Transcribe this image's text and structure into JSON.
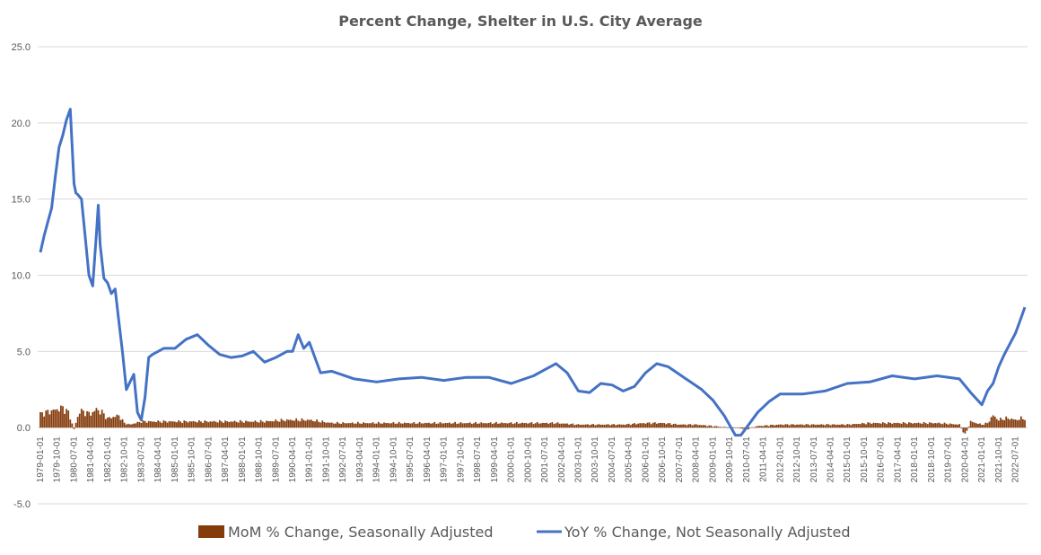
{
  "chart_data": {
    "type": "bar+line",
    "title": "Percent Change,  Shelter in U.S. City Average",
    "xlabel": "",
    "ylabel": "",
    "ylim": [
      -5,
      25
    ],
    "yticks": [
      "-5.0",
      "0.0",
      "5.0",
      "10.0",
      "15.0",
      "20.0",
      "25.0"
    ],
    "grid": true,
    "legend_position": "bottom",
    "colors": {
      "mom": "#843c0c",
      "yoy": "#4472c4"
    },
    "x_tick_labels": [
      "1979-01-01",
      "1979-10-01",
      "1980-07-01",
      "1981-04-01",
      "1982-01-01",
      "1982-10-01",
      "1983-07-01",
      "1984-04-01",
      "1985-01-01",
      "1985-10-01",
      "1986-07-01",
      "1987-04-01",
      "1988-01-01",
      "1988-10-01",
      "1989-07-01",
      "1990-04-01",
      "1991-01-01",
      "1991-10-01",
      "1992-07-01",
      "1993-04-01",
      "1994-01-01",
      "1994-10-01",
      "1995-07-01",
      "1996-04-01",
      "1997-01-01",
      "1997-10-01",
      "1998-07-01",
      "1999-04-01",
      "2000-01-01",
      "2000-10-01",
      "2001-07-01",
      "2002-04-01",
      "2003-01-01",
      "2003-10-01",
      "2004-07-01",
      "2005-04-01",
      "2006-01-01",
      "2006-10-01",
      "2007-07-01",
      "2008-04-01",
      "2009-01-01",
      "2009-10-01",
      "2010-07-01",
      "2011-04-01",
      "2012-01-01",
      "2012-10-01",
      "2013-07-01",
      "2014-04-01",
      "2015-01-01",
      "2015-10-01",
      "2016-07-01",
      "2017-04-01",
      "2018-01-01",
      "2018-10-01",
      "2019-07-01",
      "2020-04-01",
      "2021-01-01",
      "2021-10-01",
      "2022-07-01"
    ],
    "series": [
      {
        "name": "MoM % Change, Seasonally Adjusted",
        "type": "bar",
        "x": [
          "1979-01",
          "1979-04",
          "1979-07",
          "1979-10",
          "1980-01",
          "1980-04",
          "1980-07",
          "1980-10",
          "1981-01",
          "1981-04",
          "1981-07",
          "1981-10",
          "1982-01",
          "1982-04",
          "1982-07",
          "1982-10",
          "1983-01",
          "1983-07",
          "1984-01",
          "1985-01",
          "1986-01",
          "1987-01",
          "1988-01",
          "1989-01",
          "1990-01",
          "1990-07",
          "1991-01",
          "1992-01",
          "1993-01",
          "1994-01",
          "1995-01",
          "1996-01",
          "1997-01",
          "1998-01",
          "1999-01",
          "2000-01",
          "2001-01",
          "2002-01",
          "2003-01",
          "2004-01",
          "2005-01",
          "2006-01",
          "2006-10",
          "2007-07",
          "2008-04",
          "2009-01",
          "2009-10",
          "2010-01",
          "2010-07",
          "2011-01",
          "2012-01",
          "2013-01",
          "2014-01",
          "2015-01",
          "2016-01",
          "2017-01",
          "2018-01",
          "2019-01",
          "2020-01",
          "2020-04",
          "2020-07",
          "2021-01",
          "2021-04",
          "2021-07",
          "2021-10",
          "2022-01",
          "2022-04",
          "2022-07",
          "2022-10"
        ],
        "values": [
          0.9,
          1.0,
          1.1,
          1.2,
          1.3,
          1.0,
          -0.1,
          1.1,
          1.0,
          0.9,
          1.2,
          1.0,
          0.6,
          0.7,
          0.8,
          0.3,
          0.2,
          0.4,
          0.4,
          0.4,
          0.4,
          0.4,
          0.4,
          0.4,
          0.5,
          0.5,
          0.5,
          0.3,
          0.3,
          0.3,
          0.3,
          0.3,
          0.3,
          0.3,
          0.3,
          0.3,
          0.3,
          0.3,
          0.2,
          0.2,
          0.2,
          0.3,
          0.3,
          0.2,
          0.2,
          0.1,
          0.0,
          0.0,
          -0.1,
          0.1,
          0.2,
          0.2,
          0.2,
          0.2,
          0.3,
          0.3,
          0.3,
          0.3,
          0.2,
          -0.5,
          0.4,
          0.2,
          0.3,
          0.8,
          0.5,
          0.6,
          0.6,
          0.5,
          0.6
        ]
      },
      {
        "name": "YoY % Change, Not Seasonally Adjusted",
        "type": "line",
        "x": [
          "1979-01",
          "1979-03",
          "1979-05",
          "1979-07",
          "1979-09",
          "1979-11",
          "1980-01",
          "1980-03",
          "1980-05",
          "1980-07",
          "1980-08",
          "1980-09",
          "1980-11",
          "1981-01",
          "1981-03",
          "1981-05",
          "1981-07",
          "1981-08",
          "1981-09",
          "1981-11",
          "1982-01",
          "1982-03",
          "1982-05",
          "1982-07",
          "1982-09",
          "1982-11",
          "1983-01",
          "1983-03",
          "1983-05",
          "1983-07",
          "1983-09",
          "1983-11",
          "1984-01",
          "1984-07",
          "1985-01",
          "1985-07",
          "1986-01",
          "1986-07",
          "1987-01",
          "1987-07",
          "1988-01",
          "1988-07",
          "1989-01",
          "1989-07",
          "1990-01",
          "1990-04",
          "1990-07",
          "1990-10",
          "1991-01",
          "1991-07",
          "1992-01",
          "1993-01",
          "1994-01",
          "1995-01",
          "1996-01",
          "1997-01",
          "1998-01",
          "1999-01",
          "2000-01",
          "2001-01",
          "2001-07",
          "2002-01",
          "2002-07",
          "2003-01",
          "2003-07",
          "2004-01",
          "2004-07",
          "2005-01",
          "2005-07",
          "2006-01",
          "2006-07",
          "2007-01",
          "2007-07",
          "2008-01",
          "2008-07",
          "2009-01",
          "2009-07",
          "2010-01",
          "2010-04",
          "2010-07",
          "2011-01",
          "2011-07",
          "2012-01",
          "2013-01",
          "2014-01",
          "2015-01",
          "2016-01",
          "2017-01",
          "2018-01",
          "2019-01",
          "2020-01",
          "2020-07",
          "2021-01",
          "2021-04",
          "2021-07",
          "2021-10",
          "2022-01",
          "2022-04",
          "2022-07",
          "2022-10",
          "2022-12"
        ],
        "values": [
          11.5,
          12.6,
          13.5,
          14.4,
          16.5,
          18.4,
          19.2,
          20.2,
          20.9,
          16.0,
          15.4,
          15.3,
          15.0,
          12.5,
          10.0,
          9.3,
          12.7,
          14.6,
          12.0,
          9.8,
          9.5,
          8.8,
          9.1,
          7.0,
          4.9,
          2.5,
          3.0,
          3.5,
          1.0,
          0.5,
          2.0,
          4.6,
          4.8,
          5.2,
          5.2,
          5.8,
          6.1,
          5.4,
          4.8,
          4.6,
          4.7,
          5.0,
          4.3,
          4.6,
          5.0,
          5.0,
          6.1,
          5.2,
          5.6,
          3.6,
          3.7,
          3.2,
          3.0,
          3.2,
          3.3,
          3.1,
          3.3,
          3.3,
          2.9,
          3.4,
          3.8,
          4.2,
          3.6,
          2.4,
          2.3,
          2.9,
          2.8,
          2.4,
          2.7,
          3.6,
          4.2,
          4.0,
          3.5,
          3.0,
          2.5,
          1.8,
          0.8,
          -0.5,
          -0.5,
          0.0,
          1.0,
          1.7,
          2.2,
          2.2,
          2.4,
          2.9,
          3.0,
          3.4,
          3.2,
          3.4,
          3.2,
          2.3,
          1.5,
          2.4,
          2.9,
          4.0,
          4.8,
          5.5,
          6.2,
          7.2,
          7.9
        ]
      }
    ]
  }
}
